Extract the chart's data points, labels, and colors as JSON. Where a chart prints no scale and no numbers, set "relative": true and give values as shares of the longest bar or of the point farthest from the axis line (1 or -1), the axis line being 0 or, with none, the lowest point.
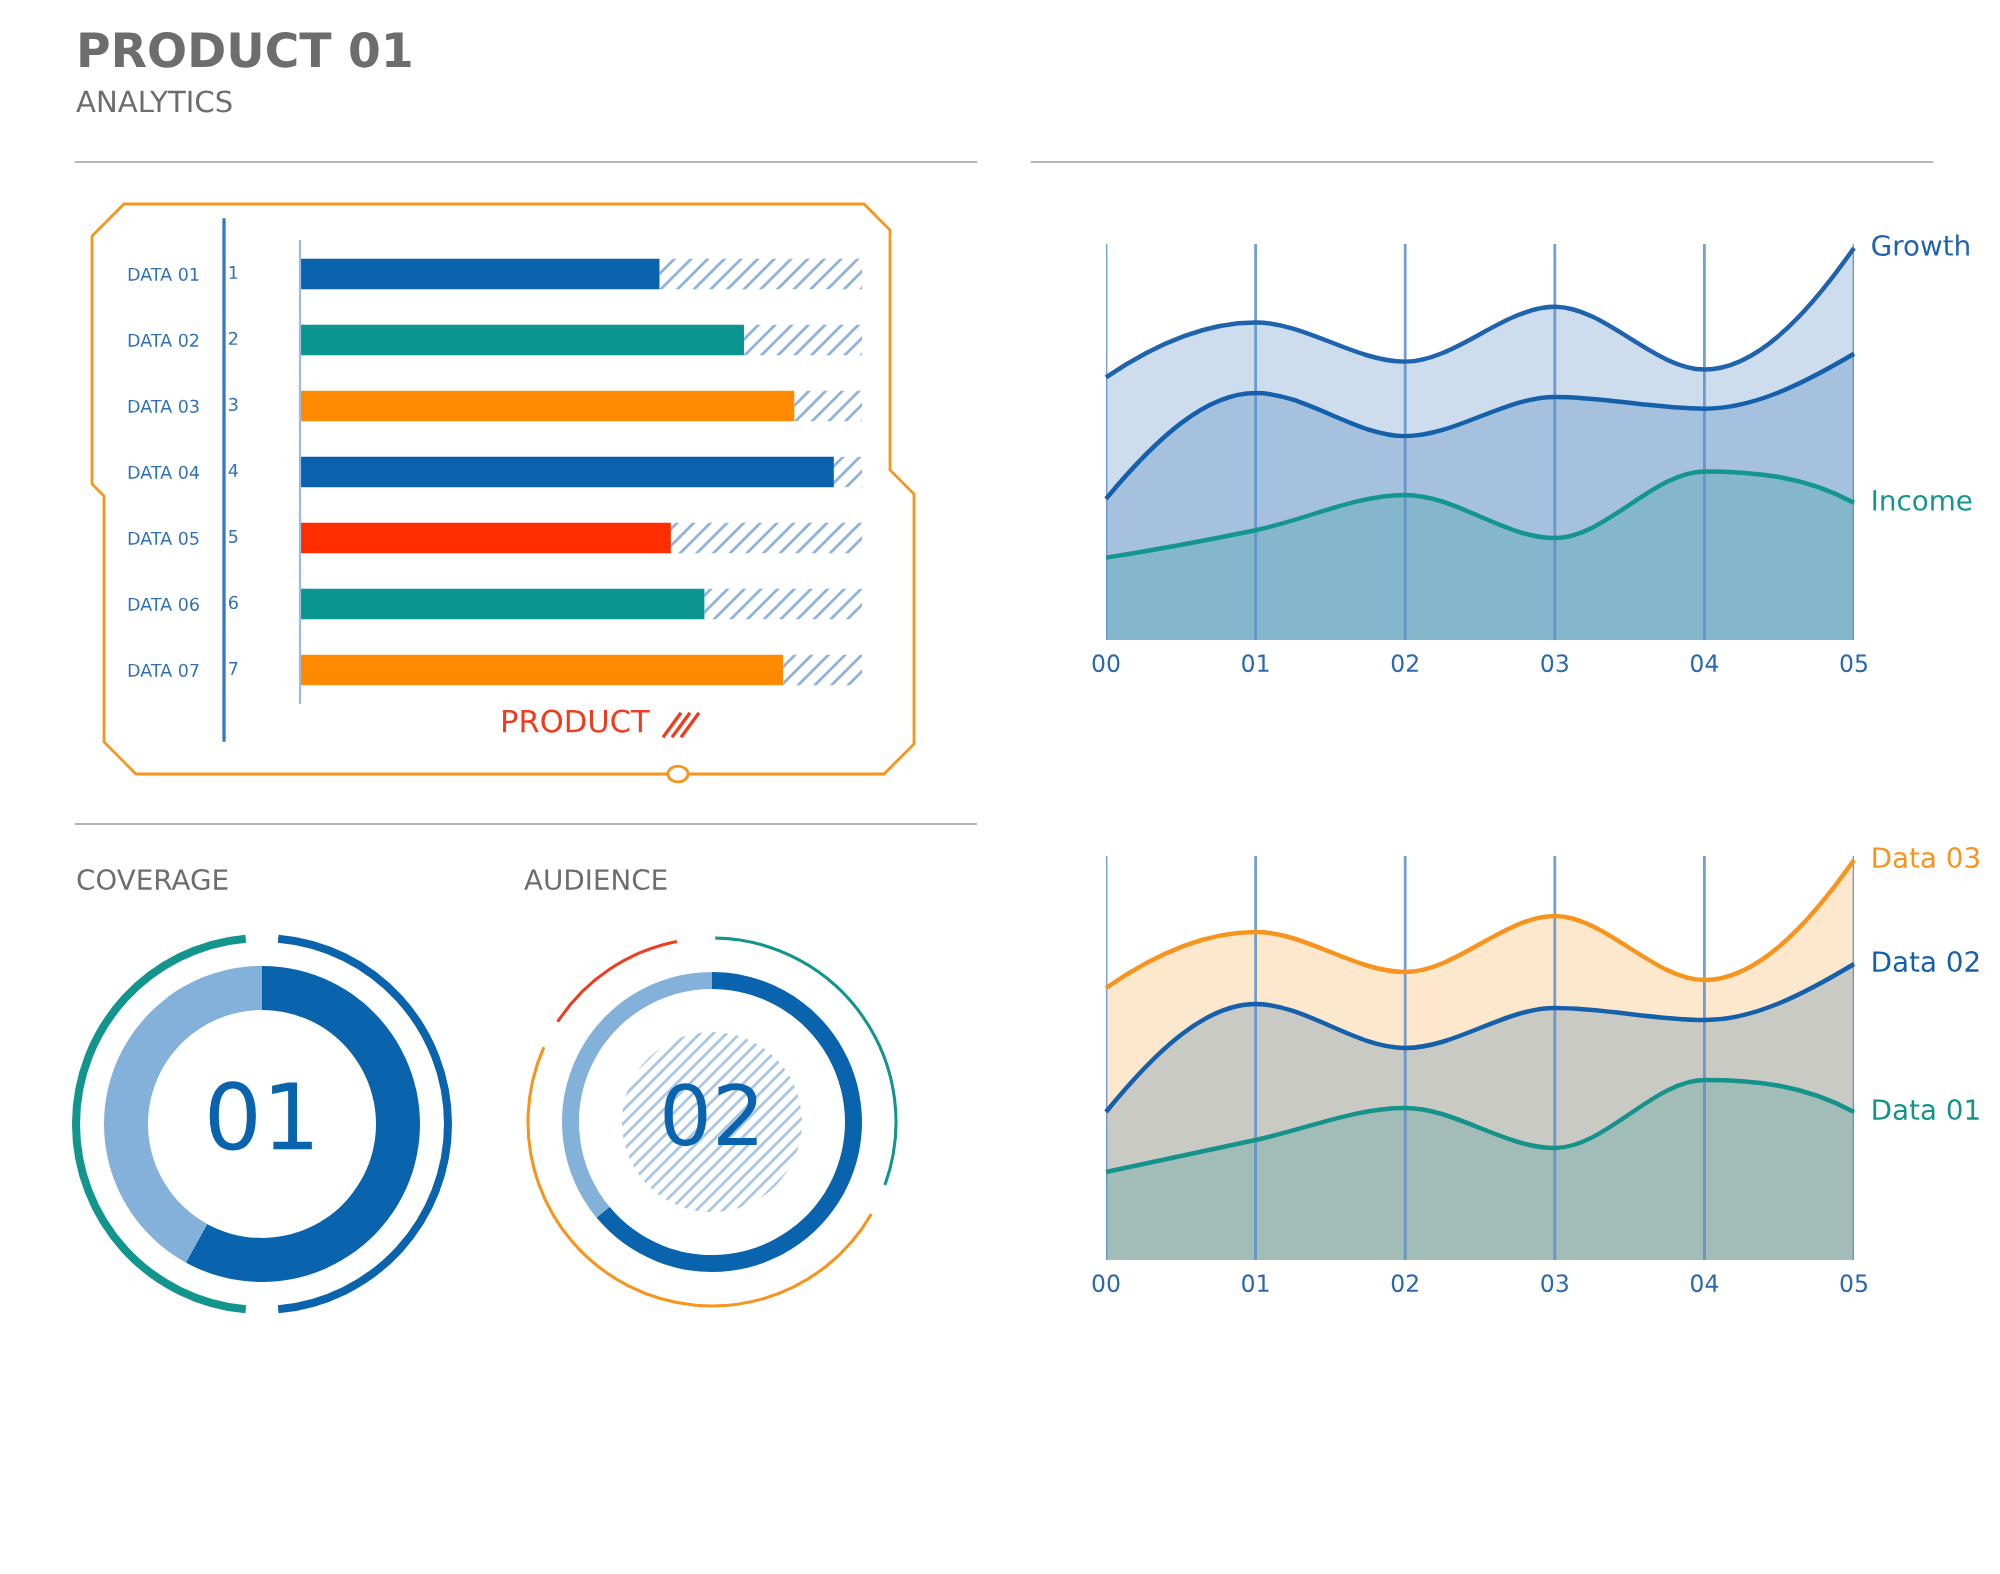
{
  "chart_data": [
    {
      "type": "bar",
      "orientation": "horizontal",
      "stacked": true,
      "relative": true,
      "title": "PRODUCT 01",
      "subtitle": "ANALYTICS",
      "categories": [
        "DATA 01",
        "DATA 02",
        "DATA 03",
        "DATA 04",
        "DATA 05",
        "DATA 06",
        "DATA 07"
      ],
      "y2_categories": [
        "1",
        "2",
        "3",
        "4",
        "5",
        "6",
        "7"
      ],
      "series": [
        {
          "colors": [
            "#0a62ad",
            "#0a9590",
            "#ff8a00",
            "#0a62ad",
            "#ff2e00",
            "#0a9590",
            "#ff8a00"
          ],
          "values": [
            0.64,
            0.79,
            0.88,
            0.95,
            0.66,
            0.72,
            0.86
          ]
        },
        {
          "color": "#8fb3dc",
          "values": [
            0.36,
            0.21,
            0.12,
            0.05,
            0.34,
            0.28,
            0.14
          ]
        }
      ],
      "annotations": [
        "PRODUCT"
      ]
    },
    {
      "type": "area",
      "relative": true,
      "grid": "x",
      "categories": [
        "00",
        "01",
        "02",
        "03",
        "04",
        "05"
      ],
      "series": [
        {
          "name": "Growth",
          "color": "#1f63ad",
          "values": [
            0.67,
            0.81,
            0.71,
            0.85,
            0.69,
            1.0
          ]
        },
        {
          "color": "#1560aa",
          "values": [
            0.36,
            0.63,
            0.52,
            0.62,
            0.59,
            0.73
          ]
        },
        {
          "name": "Income",
          "color": "#12968e",
          "values": [
            0.21,
            0.28,
            0.37,
            0.26,
            0.43,
            0.35
          ]
        }
      ]
    },
    {
      "type": "area",
      "relative": true,
      "grid": "x",
      "categories": [
        "00",
        "01",
        "02",
        "03",
        "04",
        "05"
      ],
      "series": [
        {
          "name": "Data 03",
          "color": "#f7941d",
          "values": [
            0.68,
            0.82,
            0.72,
            0.86,
            0.7,
            1.0
          ]
        },
        {
          "name": "Data 02",
          "color": "#1560aa",
          "values": [
            0.37,
            0.64,
            0.53,
            0.63,
            0.6,
            0.74
          ]
        },
        {
          "name": "Data 01",
          "color": "#15938b",
          "values": [
            0.22,
            0.3,
            0.38,
            0.28,
            0.45,
            0.37
          ]
        }
      ]
    },
    {
      "type": "donut",
      "title": "COVERAGE",
      "categories": [
        null,
        null
      ],
      "values": [
        58,
        42
      ],
      "colors": [
        "#0a64ad",
        "#84b1d9"
      ],
      "annotations": [
        "01"
      ]
    },
    {
      "type": "donut",
      "title": "AUDIENCE",
      "categories": [
        null,
        null
      ],
      "values": [
        64,
        36
      ],
      "colors": [
        "#0a64ad",
        "#84b1d9"
      ],
      "annotations": [
        "02"
      ]
    }
  ]
}
